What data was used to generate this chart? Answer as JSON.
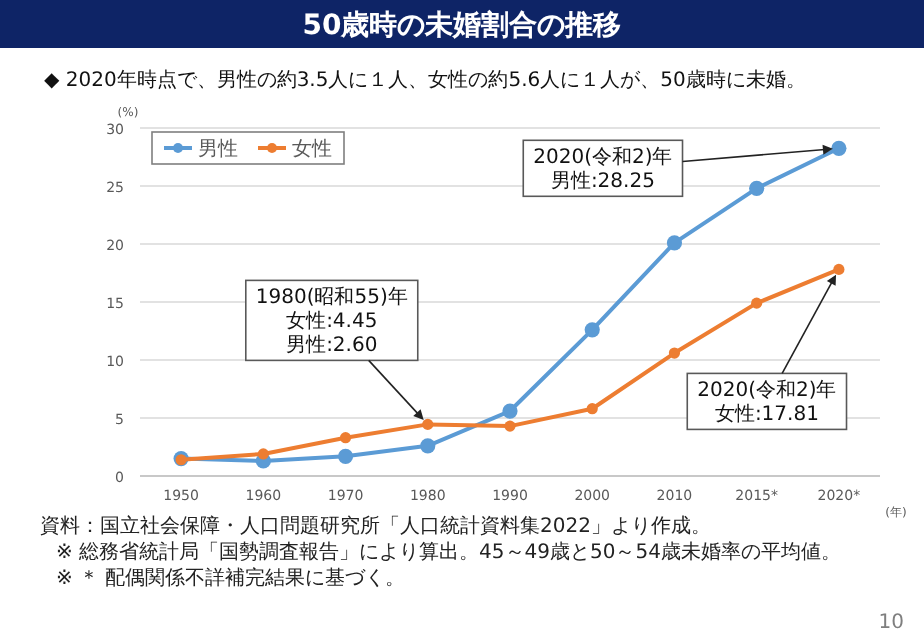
{
  "chart_data": {
    "type": "line",
    "title": "50歳時の未婚割合の推移",
    "subtitle": "◆ 2020年時点で、男性の約3.5人に１人、女性の約5.6人に１人が、50歳時に未婚。",
    "xlabel": "(年)",
    "ylabel": "(%)",
    "categories": [
      "1950",
      "1960",
      "1970",
      "1980",
      "1990",
      "2000",
      "2010",
      "2015*",
      "2020*"
    ],
    "series": [
      {
        "name": "男性",
        "color": "#5b9bd5",
        "values": [
          1.5,
          1.3,
          1.7,
          2.6,
          5.6,
          12.6,
          20.1,
          24.8,
          28.25
        ]
      },
      {
        "name": "女性",
        "color": "#ed7d31",
        "values": [
          1.4,
          1.9,
          3.3,
          4.45,
          4.3,
          5.8,
          10.6,
          14.9,
          17.81
        ]
      }
    ],
    "ylim": [
      0,
      30
    ],
    "yticks": [
      0,
      5,
      10,
      15,
      20,
      25,
      30
    ],
    "grid": "y",
    "legend": "top left",
    "marker": "circle",
    "line_style": "solid",
    "annotations": [
      "1980(昭和55)年",
      "女性:4.45",
      {
        "text": "男性:2.60",
        "x": "1980",
        "y": 4.45
      },
      {
        "text": "2020(令和2)年",
        "x": "2020*",
        "y": 28.25
      },
      "男性:28.25",
      {
        "text": "2020(令和2)年",
        "x": "2020*",
        "y": 17.81
      },
      "女性:17.81",
      "資料：国立社会保障・人口問題研究所「人口統計資料集2022」より作成。",
      "※ 総務省統計局「国勢調査報告」により算出。45～49歳と50～54歳未婚率の平均値。",
      "※ ＊ 配偶関係不詳補完結果に基づく。",
      "10"
    ]
  }
}
